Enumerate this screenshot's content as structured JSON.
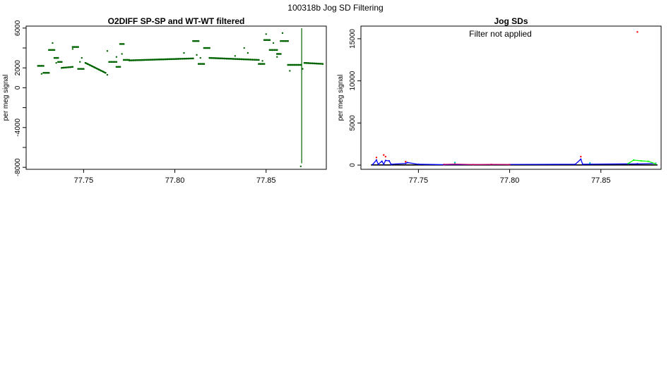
{
  "figure": {
    "title": "100318b   Jog SD Filtering"
  },
  "chart_data": [
    {
      "type": "scatter",
      "title": "O2DIFF SP-SP and WT-WT filtered",
      "ylabel": "per meg signal",
      "xlim": [
        77.7185,
        77.883
      ],
      "ylim": [
        -8200,
        6200
      ],
      "xticks": [
        "77.75",
        "77.80",
        "77.85"
      ],
      "yticks": [
        "6000",
        "2000",
        "0",
        "-4000",
        "-8000"
      ],
      "color": "#006400",
      "series": [
        {
          "segments": [
            {
              "x": [
                77.725,
                77.728
              ],
              "y": [
                2200,
                2200
              ]
            },
            {
              "x": [
                77.728,
                77.731
              ],
              "y": [
                1500,
                1500
              ]
            },
            {
              "x": [
                77.731,
                77.734
              ],
              "y": [
                3800,
                3800
              ]
            },
            {
              "x": [
                77.734,
                77.736
              ],
              "y": [
                3000,
                3000
              ]
            },
            {
              "x": [
                77.736,
                77.738
              ],
              "y": [
                2600,
                2600
              ]
            },
            {
              "x": [
                77.738,
                77.744
              ],
              "y": [
                2000,
                2100
              ]
            },
            {
              "x": [
                77.744,
                77.747
              ],
              "y": [
                4100,
                4100
              ]
            },
            {
              "x": [
                77.747,
                77.75
              ],
              "y": [
                1900,
                1900
              ]
            },
            {
              "x": [
                77.751,
                77.762
              ],
              "y": [
                2500,
                1500
              ]
            },
            {
              "x": [
                77.764,
                77.768
              ],
              "y": [
                2600,
                2600
              ]
            },
            {
              "x": [
                77.768,
                77.77
              ],
              "y": [
                2100,
                2100
              ]
            },
            {
              "x": [
                77.77,
                77.772
              ],
              "y": [
                4400,
                4400
              ]
            },
            {
              "x": [
                77.772,
                77.775
              ],
              "y": [
                2800,
                2800
              ]
            },
            {
              "x": [
                77.775,
                77.81
              ],
              "y": [
                2750,
                2950
              ]
            },
            {
              "x": [
                77.81,
                77.813
              ],
              "y": [
                4700,
                4700
              ]
            },
            {
              "x": [
                77.813,
                77.816
              ],
              "y": [
                2400,
                2400
              ]
            },
            {
              "x": [
                77.816,
                77.819
              ],
              "y": [
                4000,
                4000
              ]
            },
            {
              "x": [
                77.819,
                77.846
              ],
              "y": [
                3000,
                2800
              ]
            },
            {
              "x": [
                77.846,
                77.849
              ],
              "y": [
                2400,
                2400
              ]
            },
            {
              "x": [
                77.849,
                77.852
              ],
              "y": [
                4800,
                4800
              ]
            },
            {
              "x": [
                77.852,
                77.856
              ],
              "y": [
                3800,
                3800
              ]
            },
            {
              "x": [
                77.856,
                77.858
              ],
              "y": [
                3400,
                3400
              ]
            },
            {
              "x": [
                77.858,
                77.862
              ],
              "y": [
                4700,
                4700
              ]
            },
            {
              "x": [
                77.862,
                77.869
              ],
              "y": [
                2300,
                2300
              ]
            },
            {
              "x": [
                77.871,
                77.881
              ],
              "y": [
                2500,
                2400
              ]
            }
          ],
          "spikes": [
            {
              "x": 77.8695,
              "ymin": -7600,
              "ymax": 6000
            }
          ],
          "points": [
            {
              "x": 77.727,
              "y": 1400
            },
            {
              "x": 77.733,
              "y": 4500
            },
            {
              "x": 77.735,
              "y": 2500
            },
            {
              "x": 77.744,
              "y": 3900
            },
            {
              "x": 77.748,
              "y": 2600
            },
            {
              "x": 77.749,
              "y": 3000
            },
            {
              "x": 77.763,
              "y": 3700
            },
            {
              "x": 77.763,
              "y": 1300
            },
            {
              "x": 77.768,
              "y": 3100
            },
            {
              "x": 77.771,
              "y": 3400
            },
            {
              "x": 77.805,
              "y": 3500
            },
            {
              "x": 77.812,
              "y": 3300
            },
            {
              "x": 77.814,
              "y": 3000
            },
            {
              "x": 77.833,
              "y": 3200
            },
            {
              "x": 77.838,
              "y": 4000
            },
            {
              "x": 77.84,
              "y": 3500
            },
            {
              "x": 77.848,
              "y": 2700
            },
            {
              "x": 77.85,
              "y": 5400
            },
            {
              "x": 77.854,
              "y": 4500
            },
            {
              "x": 77.856,
              "y": 3100
            },
            {
              "x": 77.859,
              "y": 5500
            },
            {
              "x": 77.863,
              "y": 1700
            },
            {
              "x": 77.869,
              "y": -7900
            },
            {
              "x": 77.87,
              "y": 1900
            }
          ]
        }
      ]
    },
    {
      "type": "scatter",
      "title": "Jog SDs",
      "annotation": "Filter not applied",
      "ylabel": "per meg signal",
      "xlim": [
        77.7185,
        77.883
      ],
      "ylim": [
        -500,
        16500
      ],
      "xticks": [
        "77.75",
        "77.80",
        "77.85"
      ],
      "yticks": [
        "0",
        "5000",
        "10000",
        "15000"
      ],
      "colors": {
        "baseline": "#000000",
        "blue": "#0000ff",
        "red": "#ff0000",
        "magenta": "#c00060",
        "green": "#00ff00",
        "cyan": "#00c0c0"
      },
      "series": [
        {
          "name_hidden": true,
          "color": "#0000ff",
          "line": [
            [
              77.725,
              80
            ],
            [
              77.727,
              600
            ],
            [
              77.728,
              100
            ],
            [
              77.73,
              450
            ],
            [
              77.731,
              100
            ],
            [
              77.732,
              550
            ],
            [
              77.734,
              500
            ],
            [
              77.735,
              100
            ],
            [
              77.743,
              200
            ],
            [
              77.744,
              300
            ],
            [
              77.75,
              100
            ],
            [
              77.764,
              50
            ],
            [
              77.836,
              100
            ],
            [
              77.839,
              700
            ],
            [
              77.84,
              100
            ],
            [
              77.87,
              150
            ],
            [
              77.88,
              200
            ]
          ]
        },
        {
          "color": "#c00060",
          "line": [
            [
              77.764,
              80
            ],
            [
              77.77,
              120
            ],
            [
              77.78,
              60
            ],
            [
              77.79,
              80
            ],
            [
              77.8,
              70
            ]
          ]
        },
        {
          "color": "#00ff00",
          "line": [
            [
              77.865,
              200
            ],
            [
              77.868,
              600
            ],
            [
              77.872,
              500
            ],
            [
              77.876,
              450
            ],
            [
              77.88,
              150
            ]
          ]
        }
      ],
      "points": [
        {
          "x": 77.87,
          "y": 15800,
          "color": "#ff0000"
        },
        {
          "x": 77.727,
          "y": 900,
          "color": "#ff0000"
        },
        {
          "x": 77.731,
          "y": 1200,
          "color": "#ff0000"
        },
        {
          "x": 77.732,
          "y": 1000,
          "color": "#ff0000"
        },
        {
          "x": 77.839,
          "y": 1000,
          "color": "#ff0000"
        },
        {
          "x": 77.743,
          "y": 400,
          "color": "#ff0000"
        },
        {
          "x": 77.77,
          "y": 300,
          "color": "#00c0c0"
        },
        {
          "x": 77.844,
          "y": 250,
          "color": "#00c0c0"
        }
      ]
    }
  ]
}
